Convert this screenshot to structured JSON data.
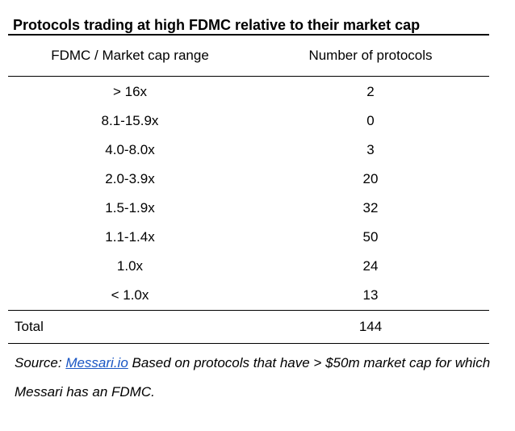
{
  "title": "Protocols trading at high FDMC relative to their market cap",
  "table": {
    "headers": {
      "range": "FDMC / Market cap range",
      "count": "Number of protocols"
    },
    "rows": [
      {
        "range": "> 16x",
        "count": "2"
      },
      {
        "range": "8.1-15.9x",
        "count": "0"
      },
      {
        "range": "4.0-8.0x",
        "count": "3"
      },
      {
        "range": "2.0-3.9x",
        "count": "20"
      },
      {
        "range": "1.5-1.9x",
        "count": "32"
      },
      {
        "range": "1.1-1.4x",
        "count": "50"
      },
      {
        "range": "1.0x",
        "count": "24"
      },
      {
        "range": "< 1.0x",
        "count": "13"
      }
    ],
    "total": {
      "label": "Total",
      "count": "144"
    }
  },
  "footnote": {
    "prefix": "Source: ",
    "link_text": "Messari.io",
    "text": " Based on protocols that have > $50m market cap for which Messari has an FDMC."
  }
}
